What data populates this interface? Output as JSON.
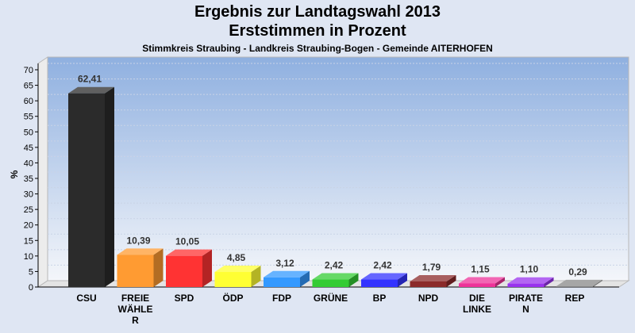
{
  "chart_data": {
    "type": "bar",
    "title": "Ergebnis zur Landtagswahl 2013",
    "subtitle": "Erststimmen in Prozent",
    "caption": "Stimmkreis Straubing - Landkreis Straubing-Bogen - Gemeinde AITERHOFEN",
    "ylabel": "%",
    "ylim": [
      0,
      70
    ],
    "yticks": [
      0,
      5,
      10,
      15,
      20,
      25,
      30,
      35,
      40,
      45,
      50,
      55,
      60,
      65,
      70
    ],
    "grid": true,
    "categories": [
      [
        "CSU"
      ],
      [
        "FREIE",
        "WÄHLE",
        "R"
      ],
      [
        "SPD"
      ],
      [
        "ÖDP"
      ],
      [
        "FDP"
      ],
      [
        "GRÜNE"
      ],
      [
        "BP"
      ],
      [
        "NPD"
      ],
      [
        "DIE",
        "LINKE"
      ],
      [
        "PIRATE",
        "N"
      ],
      [
        "REP"
      ]
    ],
    "values": [
      62.41,
      10.39,
      10.05,
      4.85,
      3.12,
      2.42,
      2.42,
      1.79,
      1.15,
      1.1,
      0.29
    ],
    "value_labels": [
      "62,41",
      "10,39",
      "10,05",
      "4,85",
      "3,12",
      "2,42",
      "2,42",
      "1,79",
      "1,15",
      "1,10",
      "0,29"
    ],
    "colors": [
      "#2b2b2b",
      "#ff9b32",
      "#ff3333",
      "#ffff33",
      "#3399ff",
      "#33cc33",
      "#3333ff",
      "#8b2a2a",
      "#ee3399",
      "#9933ee",
      "#888888"
    ]
  }
}
